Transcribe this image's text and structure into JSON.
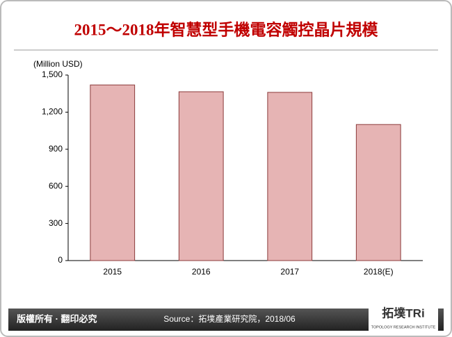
{
  "chart_data": {
    "type": "bar",
    "title": "2015～2018年智慧型手機電容觸控晶片規模",
    "y_label": "(Million USD)",
    "categories": [
      "2015",
      "2016",
      "2017",
      "2018(E)"
    ],
    "values": [
      1420,
      1365,
      1360,
      1100
    ],
    "color": "#e6b4b4",
    "edge_color": "#8b3a3a",
    "ylim": [
      0,
      1500
    ],
    "yticks": [
      0,
      300,
      600,
      900,
      {
        "value": 1200,
        "label": "1,200"
      },
      {
        "value": 1500,
        "label": "1,500"
      }
    ],
    "grid": false
  },
  "footer": {
    "rights": "版權所有 · 翻印必究",
    "source": "Source：拓墣產業研究院，2018/06",
    "logo": "拓墣TRi",
    "logo_sub": "TOPOLOGY RESEARCH INSTITUTE"
  }
}
